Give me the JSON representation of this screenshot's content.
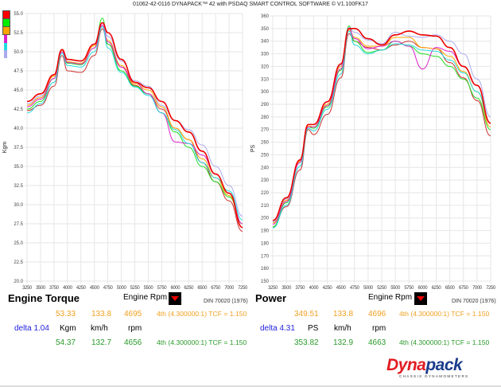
{
  "header": {
    "title": "01062-42-0116 DYNAPACK™ 42 with PSDAQ SMART CONTROL SOFTWARE © V1.100FK17"
  },
  "legend_swatches": [
    "#ff0000",
    "#00ee00",
    "#ffa500",
    "#dd22cc",
    "#22dddd",
    "#aaaaee"
  ],
  "torque_panel": {
    "title": "Engine Torque",
    "x_selector": "Engine Rpm",
    "standard": "DIN 70020 (1976)",
    "row1": {
      "value": "53.33",
      "speed": "133.8",
      "rpm": "4695",
      "gear": "4th (4.300000:1) TCF = 1.150"
    },
    "units": {
      "delta": "delta 1.04",
      "unit": "Kgm",
      "speed": "km/h",
      "rpm": "rpm"
    },
    "row2": {
      "value": "54.37",
      "speed": "132.7",
      "rpm": "4656",
      "gear": "4th (4.300000:1) TCF = 1.150"
    }
  },
  "power_panel": {
    "title": "Power",
    "x_selector": "Engine Rpm",
    "standard": "DIN 70020 (1976)",
    "row1": {
      "value": "349.51",
      "speed": "133.8",
      "rpm": "4696",
      "gear": "4th (4.300000:1) TCF = 1.150"
    },
    "units": {
      "delta": "delta 4.31",
      "unit": "PS",
      "speed": "km/h",
      "rpm": "rpm"
    },
    "row2": {
      "value": "353.82",
      "speed": "132.9",
      "rpm": "4663",
      "gear": "4th (4.300000:1) TCF = 1.150"
    }
  },
  "logo": {
    "word1": "Dyna",
    "word2": "pack",
    "sub": "CHASSIS DYNAMOMETERS"
  },
  "chart_data": [
    {
      "type": "line",
      "title": "Engine Torque",
      "xlabel": "Engine Rpm",
      "ylabel": "Kgm",
      "xlim": [
        3250,
        7250
      ],
      "ylim": [
        20,
        55
      ],
      "xticks": [
        3250,
        3500,
        3750,
        4000,
        4250,
        4500,
        4750,
        5000,
        5250,
        5500,
        5750,
        6000,
        6250,
        6500,
        6750,
        7000,
        7250
      ],
      "yticks": [
        "20.0",
        "22.5",
        "25.0",
        "27.5",
        "30.0",
        "32.5",
        "35.0",
        "37.5",
        "40.0",
        "42.5",
        "45.0",
        "47.5",
        "50.0",
        "52.5",
        "55.0"
      ],
      "grid": true,
      "x": [
        3250,
        3500,
        3750,
        3900,
        4000,
        4250,
        4500,
        4650,
        4750,
        5000,
        5250,
        5500,
        5750,
        6000,
        6250,
        6500,
        6750,
        7000,
        7250
      ],
      "series": [
        {
          "name": "run-darkred",
          "color": "#cc3333",
          "values": [
            42.3,
            43,
            45.5,
            49.5,
            47.5,
            47.3,
            49.5,
            53,
            51,
            48,
            45.6,
            44.5,
            42.5,
            40,
            38.5,
            35.5,
            33,
            30.5,
            26.5
          ]
        },
        {
          "name": "run-green",
          "color": "#22dd22",
          "values": [
            42.5,
            43.5,
            46.5,
            50,
            48.5,
            48.3,
            50.5,
            54.4,
            51,
            47.5,
            45.5,
            44.5,
            42,
            39.5,
            37.5,
            35,
            33,
            31,
            27.5
          ]
        },
        {
          "name": "run-orange",
          "color": "#ffa500",
          "values": [
            43,
            44,
            46.8,
            50.2,
            48.7,
            48.5,
            50.8,
            53.3,
            51.5,
            48.2,
            45.8,
            45,
            42.8,
            40,
            38.5,
            36,
            33.5,
            31.2,
            27
          ]
        },
        {
          "name": "run-magenta",
          "color": "#dd22cc",
          "values": [
            42.8,
            43.8,
            46.5,
            50,
            48.6,
            48.4,
            50.5,
            53.5,
            51.3,
            48,
            46,
            44.5,
            42,
            38.2,
            38,
            36.5,
            34,
            31.5,
            27.5
          ]
        },
        {
          "name": "run-cyan",
          "color": "#22dddd",
          "values": [
            42,
            43.2,
            46,
            49.8,
            48.2,
            48,
            50,
            53.3,
            50.5,
            47.3,
            45.4,
            44.3,
            42,
            39.8,
            38,
            35.5,
            33.5,
            31.8,
            28
          ]
        },
        {
          "name": "run-lavender",
          "color": "#aaaaee",
          "values": [
            43.2,
            44.2,
            47,
            50.3,
            49,
            48.8,
            51,
            53.8,
            52,
            48.8,
            46.2,
            45.5,
            43,
            41,
            39.8,
            37.8,
            35,
            32.5,
            28.5
          ]
        },
        {
          "name": "run-red",
          "color": "#ee0000",
          "values": [
            43.5,
            44.5,
            47,
            50.3,
            49,
            48.8,
            51,
            53.8,
            52.5,
            49,
            46,
            45.3,
            43.5,
            41,
            39.5,
            37,
            34,
            31.5,
            27
          ]
        }
      ]
    },
    {
      "type": "line",
      "title": "Power",
      "xlabel": "Engine Rpm",
      "ylabel": "PS",
      "xlim": [
        3250,
        7250
      ],
      "ylim": [
        150,
        360
      ],
      "xticks": [
        3250,
        3500,
        3750,
        4000,
        4250,
        4500,
        4750,
        5000,
        5250,
        5500,
        5750,
        6000,
        6250,
        6500,
        6750,
        7000,
        7250
      ],
      "yticks": [
        "150",
        "160",
        "170",
        "180",
        "190",
        "200",
        "210",
        "220",
        "230",
        "240",
        "250",
        "260",
        "270",
        "280",
        "290",
        "300",
        "310",
        "320",
        "330",
        "340",
        "350",
        "360"
      ],
      "grid": true,
      "x": [
        3250,
        3500,
        3750,
        3900,
        4000,
        4250,
        4500,
        4650,
        4750,
        5000,
        5250,
        5500,
        5750,
        6000,
        6250,
        6500,
        6750,
        7000,
        7250
      ],
      "series": [
        {
          "name": "run-darkred",
          "color": "#cc3333",
          "values": [
            193,
            209,
            238,
            270,
            266,
            282,
            311,
            346,
            340,
            335,
            333,
            337,
            340,
            335,
            334,
            323,
            311,
            293,
            265
          ]
        },
        {
          "name": "run-green",
          "color": "#22dd22",
          "values": [
            193,
            212,
            244,
            272,
            271,
            288,
            317,
            352,
            340,
            331,
            333,
            340,
            336,
            330,
            328,
            320,
            310,
            295,
            270
          ]
        },
        {
          "name": "run-orange",
          "color": "#ffa500",
          "values": [
            196,
            214,
            245,
            273,
            272,
            290,
            320,
            349,
            343,
            336,
            336,
            343,
            343,
            335,
            334,
            328,
            316,
            300,
            272
          ]
        },
        {
          "name": "run-magenta",
          "color": "#dd22cc",
          "values": [
            195,
            213,
            244,
            272,
            272,
            289,
            318,
            350,
            342,
            334,
            336,
            340,
            336,
            318,
            335,
            332,
            320,
            305,
            275
          ]
        },
        {
          "name": "run-cyan",
          "color": "#22dddd",
          "values": [
            192,
            210,
            241,
            271,
            269,
            286,
            314,
            348,
            337,
            330,
            333,
            338,
            337,
            333,
            332,
            325,
            315,
            300,
            275
          ]
        },
        {
          "name": "run-lavender",
          "color": "#aaaaee",
          "values": [
            197,
            215,
            246,
            274,
            274,
            292,
            321,
            351,
            347,
            341,
            338,
            347,
            344,
            343,
            345,
            340,
            330,
            310,
            280
          ]
        },
        {
          "name": "run-red",
          "color": "#ee0000",
          "values": [
            198,
            216,
            246,
            274,
            274,
            292,
            322,
            350,
            350,
            342,
            337,
            345,
            348,
            345,
            344,
            335,
            320,
            305,
            275
          ]
        }
      ]
    }
  ]
}
